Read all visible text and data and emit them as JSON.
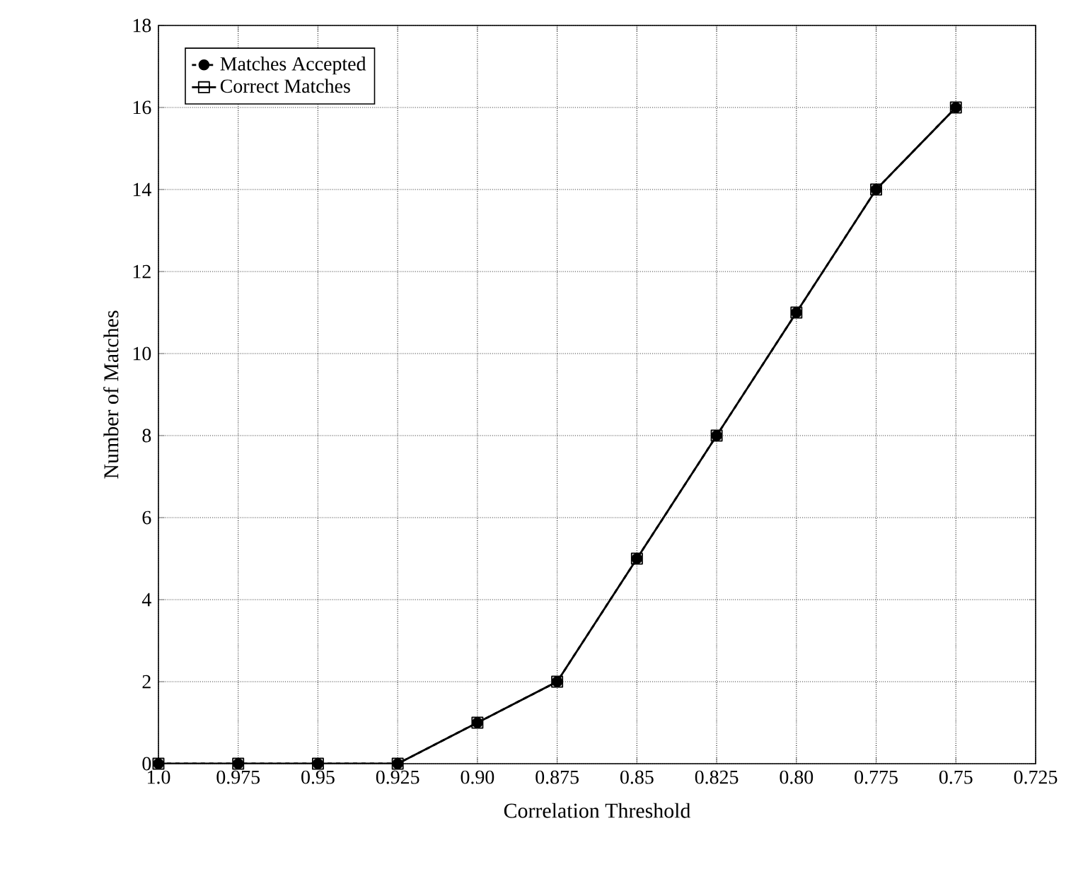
{
  "chart_data": {
    "type": "line",
    "xlabel": "Correlation Threshold",
    "ylabel": "Number of Matches",
    "x": [
      1.0,
      0.975,
      0.95,
      0.925,
      0.9,
      0.875,
      0.85,
      0.825,
      0.8,
      0.775,
      0.75
    ],
    "series": [
      {
        "name": "Matches Accepted",
        "color": "#000000",
        "marker": "circle",
        "line_style": "dashed",
        "values": [
          0,
          0,
          0,
          0,
          1,
          2,
          5,
          8,
          11,
          14,
          16
        ]
      },
      {
        "name": "Correct Matches",
        "color": "#000000",
        "marker": "square",
        "line_style": "solid",
        "values": [
          0,
          0,
          0,
          0,
          1,
          2,
          5,
          8,
          11,
          14,
          16
        ]
      }
    ],
    "xlim": [
      1.0,
      0.725
    ],
    "xticks": [
      {
        "value": 1.0,
        "label": "1.0"
      },
      0.975,
      0.95,
      0.925,
      {
        "value": 0.9,
        "label": "0.90"
      },
      0.875,
      0.85,
      0.825,
      {
        "value": 0.8,
        "label": "0.80"
      },
      0.775,
      0.75,
      0.725
    ],
    "ylim": [
      0,
      18
    ],
    "yticks": [
      0,
      2,
      4,
      6,
      8,
      10,
      12,
      14,
      16,
      18
    ],
    "grid": true,
    "legend": "top left"
  }
}
